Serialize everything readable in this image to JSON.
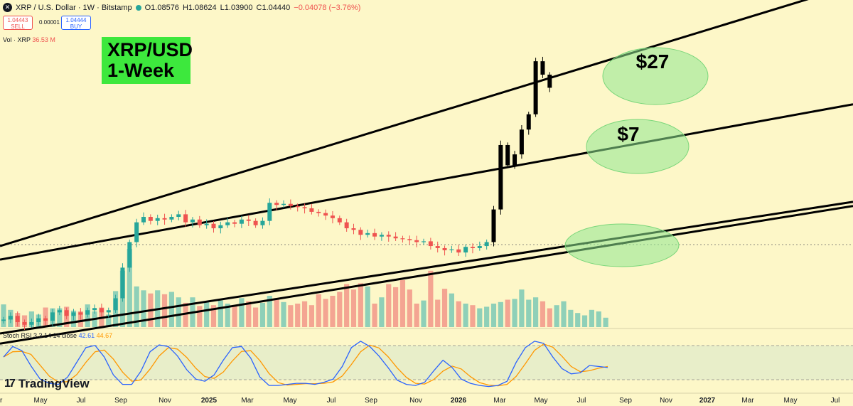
{
  "header": {
    "symbol_line": "XRP / U.S. Dollar · 1W · Bitstamp",
    "open": "O1.08576",
    "high": "H1.08624",
    "low": "L1.03900",
    "close": "C1.04440",
    "change": "−0.04078 (−3.76%)"
  },
  "trade": {
    "sell_price": "1.04443",
    "sell_label": "SELL",
    "spread": "0.00001",
    "buy_price": "1.04444",
    "buy_label": "BUY"
  },
  "volume": {
    "label": "Vol · XRP",
    "value": "36.53 M"
  },
  "annotation": {
    "title_line1": "XRP/USD",
    "title_line2": "1-Week",
    "target_high": "$27",
    "target_mid": "$7"
  },
  "stoch": {
    "label": "Stoch RSI 3 3 14 14 close",
    "k": "42.61",
    "d": "44.67"
  },
  "brand": "TradingView",
  "colors": {
    "background": "#fdf7c8",
    "up": "#26a69a",
    "down": "#ef5350",
    "highlight": "#8fe88f",
    "rsi_k": "#2962ff",
    "rsi_d": "#ff9800"
  },
  "chart_data": {
    "type": "candlestick",
    "timeframe": "1W",
    "x_ticks": [
      "r",
      "May",
      "Jul",
      "Sep",
      "Nov",
      "2025",
      "Mar",
      "May",
      "Jul",
      "Sep",
      "Nov",
      "2026",
      "Mar",
      "May",
      "Jul",
      "Sep",
      "Nov",
      "2027",
      "Mar",
      "May",
      "Jul"
    ],
    "price_path": [
      0.52,
      0.55,
      0.5,
      0.48,
      0.5,
      0.53,
      0.51,
      0.58,
      0.6,
      0.55,
      0.58,
      0.56,
      0.6,
      0.62,
      0.58,
      0.6,
      0.72,
      1.15,
      1.7,
      2.3,
      2.5,
      2.35,
      2.45,
      2.4,
      2.5,
      2.6,
      2.3,
      2.4,
      2.2,
      2.25,
      2.1,
      2.2,
      2.3,
      2.25,
      2.4,
      2.35,
      2.2,
      2.35,
      3.1,
      3.0,
      3.05,
      2.95,
      2.9,
      2.85,
      2.7,
      2.65,
      2.55,
      2.45,
      2.3,
      2.1,
      2.05,
      1.9,
      1.95,
      1.85,
      1.9,
      1.85,
      1.8,
      1.78,
      1.75,
      1.7,
      1.72,
      1.6,
      1.55,
      1.5,
      1.52,
      1.45,
      1.58,
      1.55,
      1.6,
      1.7,
      2.8,
      7.5,
      5.5,
      6.5,
      9.5,
      12.0,
      27.0,
      22.0,
      18.0
    ],
    "volume_relative": [
      0.29,
      0.22,
      0.18,
      0.15,
      0.2,
      0.16,
      0.25,
      0.24,
      0.24,
      0.26,
      0.21,
      0.2,
      0.29,
      0.2,
      0.25,
      0.16,
      0.46,
      0.72,
      1.0,
      0.52,
      0.47,
      0.43,
      0.47,
      0.42,
      0.45,
      0.38,
      0.31,
      0.38,
      0.27,
      0.33,
      0.28,
      0.34,
      0.3,
      0.28,
      0.37,
      0.33,
      0.25,
      0.31,
      0.4,
      0.37,
      0.32,
      0.28,
      0.3,
      0.33,
      0.28,
      0.42,
      0.36,
      0.4,
      0.45,
      0.55,
      0.48,
      0.56,
      0.52,
      0.3,
      0.38,
      0.55,
      0.51,
      0.6,
      0.48,
      0.3,
      0.34,
      0.72,
      0.35,
      0.49,
      0.43,
      0.33,
      0.3,
      0.28,
      0.24,
      0.26,
      0.3,
      0.32,
      0.35,
      0.36,
      0.48,
      0.35,
      0.38,
      0.33,
      0.24,
      0.28,
      0.33,
      0.22,
      0.18,
      0.15,
      0.22,
      0.2,
      0.12
    ],
    "channel_lines": [
      {
        "from": [
          0,
          1.6
        ],
        "to": [
          86,
          27.0
        ],
        "label": "$27"
      },
      {
        "from": [
          0,
          1.3
        ],
        "to": [
          86,
          7.0
        ],
        "label": "$7"
      },
      {
        "from": [
          0,
          0.42
        ],
        "to": [
          86,
          1.75
        ]
      },
      {
        "from": [
          0,
          0.36
        ],
        "to": [
          86,
          1.6
        ]
      }
    ],
    "stoch_rsi": {
      "k_last": 42.61,
      "d_last": 44.67,
      "k": [
        62,
        82,
        74,
        45,
        20,
        12,
        10,
        24,
        52,
        80,
        84,
        62,
        28,
        10,
        10,
        35,
        72,
        85,
        82,
        64,
        38,
        20,
        16,
        28,
        56,
        80,
        82,
        60,
        24,
        8,
        8,
        10,
        12,
        12,
        10,
        14,
        20,
        44,
        80,
        92,
        82,
        64,
        42,
        18,
        10,
        8,
        14,
        36,
        56,
        42,
        20,
        12,
        8,
        6,
        8,
        16,
        52,
        80,
        92,
        88,
        62,
        40,
        30,
        32,
        46,
        44,
        42
      ]
    }
  }
}
